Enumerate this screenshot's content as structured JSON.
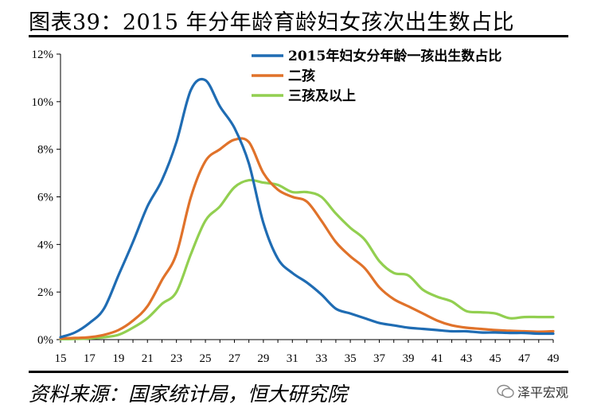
{
  "title": "图表39：2015 年分年龄育龄妇女孩次出生数占比",
  "source": "资料来源：国家统计局，恒大研究院",
  "brand": "泽平宏观",
  "chart_data": {
    "type": "line",
    "x_tick_labels": [
      "15",
      "17",
      "19",
      "21",
      "23",
      "25",
      "27",
      "29",
      "31",
      "33",
      "35",
      "37",
      "39",
      "41",
      "43",
      "45",
      "47",
      "49"
    ],
    "y_tick_labels": [
      "0%",
      "2%",
      "4%",
      "6%",
      "8%",
      "10%",
      "12%"
    ],
    "xlim": [
      15,
      49
    ],
    "ylim": [
      0,
      12
    ],
    "x": [
      15,
      16,
      17,
      18,
      19,
      20,
      21,
      22,
      23,
      24,
      25,
      26,
      27,
      28,
      29,
      30,
      31,
      32,
      33,
      34,
      35,
      36,
      37,
      38,
      39,
      40,
      41,
      42,
      43,
      44,
      45,
      46,
      47,
      48,
      49
    ],
    "series": [
      {
        "name": "2015年妇女分年龄一孩出生数占比",
        "color": "#1f6cb3",
        "values": [
          0.1,
          0.3,
          0.7,
          1.3,
          2.7,
          4.1,
          5.6,
          6.7,
          8.3,
          10.5,
          10.9,
          9.8,
          8.9,
          7.4,
          4.9,
          3.4,
          2.8,
          2.4,
          1.9,
          1.3,
          1.1,
          0.9,
          0.7,
          0.6,
          0.5,
          0.45,
          0.4,
          0.35,
          0.35,
          0.3,
          0.3,
          0.28,
          0.28,
          0.25,
          0.25
        ]
      },
      {
        "name": "二孩",
        "color": "#e0722a",
        "values": [
          0.05,
          0.07,
          0.1,
          0.2,
          0.4,
          0.8,
          1.4,
          2.5,
          3.6,
          6.0,
          7.5,
          8.0,
          8.4,
          8.3,
          7.0,
          6.3,
          6.0,
          5.8,
          5.0,
          4.1,
          3.5,
          3.0,
          2.2,
          1.7,
          1.4,
          1.1,
          0.8,
          0.6,
          0.5,
          0.45,
          0.4,
          0.37,
          0.35,
          0.33,
          0.35
        ]
      },
      {
        "name": "三孩及以上",
        "color": "#92cf50",
        "values": [
          0.02,
          0.03,
          0.05,
          0.1,
          0.2,
          0.5,
          0.9,
          1.5,
          2.0,
          3.6,
          5.0,
          5.6,
          6.4,
          6.7,
          6.6,
          6.5,
          6.2,
          6.2,
          6.0,
          5.3,
          4.7,
          4.2,
          3.3,
          2.8,
          2.7,
          2.1,
          1.8,
          1.6,
          1.2,
          1.15,
          1.1,
          0.9,
          0.95,
          0.95,
          0.95
        ]
      }
    ]
  }
}
